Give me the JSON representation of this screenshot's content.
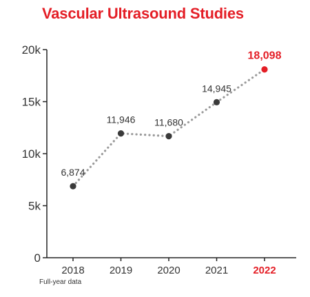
{
  "chart_data": {
    "type": "line",
    "title": "Vascular Ultrasound Studies",
    "xlabel": "",
    "ylabel": "",
    "categories": [
      "2018",
      "2019",
      "2020",
      "2021",
      "2022"
    ],
    "series": [
      {
        "values": [
          6874,
          11946,
          11680,
          14945,
          18098
        ],
        "labels": [
          "6,874",
          "11,946",
          "11,680",
          "14,945",
          "18,098"
        ]
      }
    ],
    "highlight_index": 4,
    "ylim": [
      0,
      20000
    ],
    "yticks": [
      0,
      5000,
      10000,
      15000,
      20000
    ],
    "ytick_labels": [
      "0",
      "5k",
      "10k",
      "15k",
      "20k"
    ],
    "grid": false,
    "line_style": "dotted",
    "colors": {
      "accent": "#e41e26",
      "point": "#3a3a3a",
      "line": "#9a9a9a",
      "text": "#333333"
    }
  },
  "footnote": "Full-year data"
}
